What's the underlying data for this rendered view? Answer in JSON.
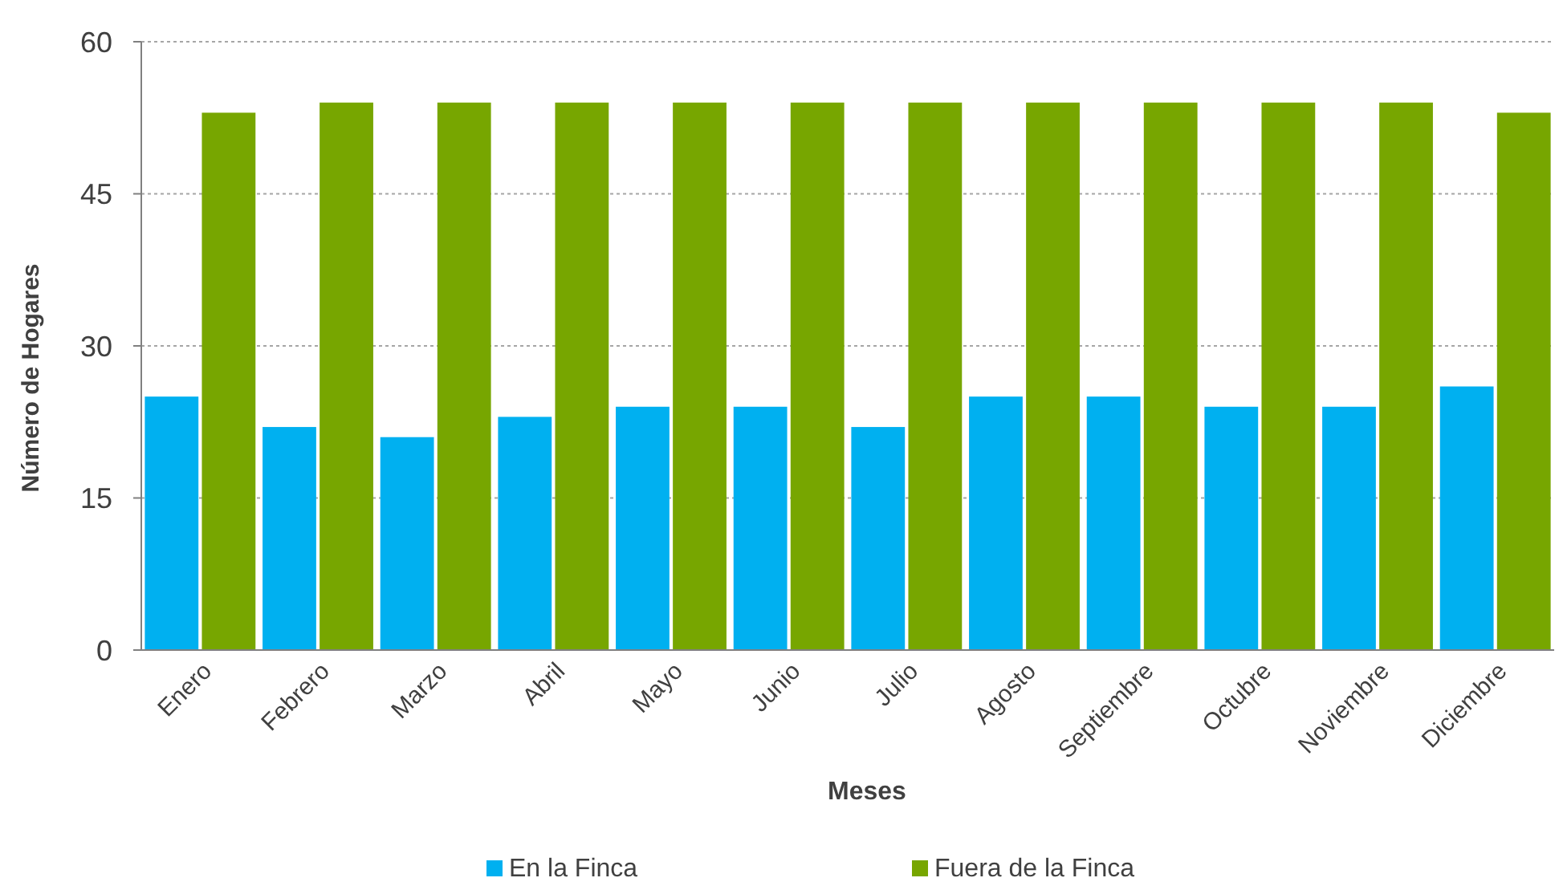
{
  "chart_data": {
    "type": "bar",
    "xlabel": "Meses",
    "ylabel": "Número de Hogares",
    "categories": [
      "Enero",
      "Febrero",
      "Marzo",
      "Abril",
      "Mayo",
      "Junio",
      "Julio",
      "Agosto",
      "Septiembre",
      "Octubre",
      "Noviembre",
      "Diciembre"
    ],
    "series": [
      {
        "name": "En la Finca",
        "color": "#00b0f0",
        "values": [
          25,
          22,
          21,
          23,
          24,
          24,
          22,
          25,
          25,
          24,
          24,
          26
        ]
      },
      {
        "name": "Fuera de la Finca",
        "color": "#77a600",
        "values": [
          53,
          54,
          54,
          54,
          54,
          54,
          54,
          54,
          54,
          54,
          54,
          53
        ]
      }
    ],
    "ylim": [
      0,
      60
    ],
    "yticks": [
      0,
      15,
      30,
      45,
      60
    ],
    "grid": "y",
    "legend": "bottom"
  }
}
